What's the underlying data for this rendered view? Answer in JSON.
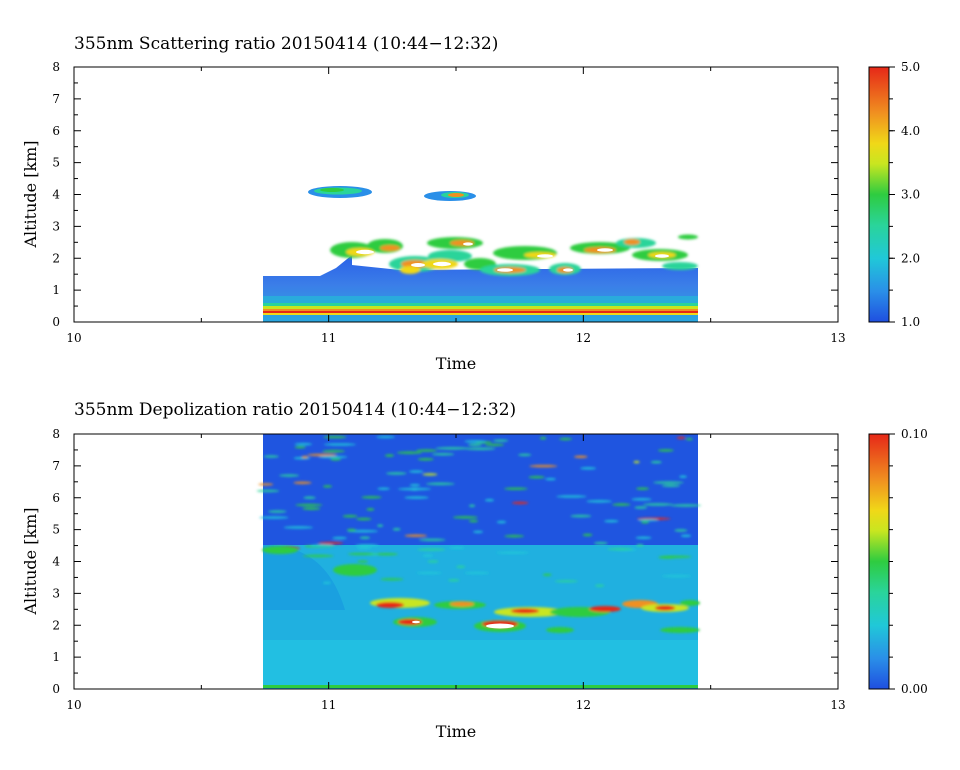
{
  "chart_data": [
    {
      "type": "heatmap",
      "title": "355nm Scattering ratio  20150414 (10:44−12:32)",
      "xlabel": "Time",
      "ylabel": "Altitude [km]",
      "xlim": [
        10,
        13
      ],
      "ylim": [
        0,
        8
      ],
      "x_ticks": [
        "10",
        "11",
        "12",
        "13"
      ],
      "y_ticks": [
        "0",
        "1",
        "2",
        "3",
        "4",
        "5",
        "6",
        "7",
        "8"
      ],
      "colorbar": {
        "min": 1.0,
        "max": 5.0,
        "ticks": [
          "1.0",
          "2.0",
          "3.0",
          "4.0",
          "5.0"
        ]
      },
      "data_extent_time": [
        10.73,
        12.45
      ],
      "features": [
        {
          "name": "aerosol layer",
          "t0": 10.73,
          "t1": 12.45,
          "z0": 0.25,
          "z1": 1.4,
          "value": 1.4
        },
        {
          "name": "surface band",
          "t0": 10.73,
          "t1": 12.45,
          "z0": 0.3,
          "z1": 0.35,
          "value": 4.6
        },
        {
          "name": "low clouds",
          "t0": 11.0,
          "t1": 12.45,
          "z0": 1.5,
          "z1": 2.7,
          "value": 4.5
        },
        {
          "name": "cloud 4km",
          "t0": 10.93,
          "t1": 11.15,
          "z0": 3.95,
          "z1": 4.15,
          "value": 3.2
        },
        {
          "name": "cloud 4km",
          "t0": 11.37,
          "t1": 11.57,
          "z0": 3.85,
          "z1": 4.05,
          "value": 3.8
        }
      ]
    },
    {
      "type": "heatmap",
      "title": "355nm Depolization ratio  20150414 (10:44−12:32)",
      "xlabel": "Time",
      "ylabel": "Altitude [km]",
      "xlim": [
        10,
        13
      ],
      "ylim": [
        0,
        8
      ],
      "x_ticks": [
        "10",
        "11",
        "12",
        "13"
      ],
      "y_ticks": [
        "0",
        "1",
        "2",
        "3",
        "4",
        "5",
        "6",
        "7",
        "8"
      ],
      "colorbar": {
        "min": 0.0,
        "max": 0.1,
        "ticks": [
          "0.00",
          "0.10"
        ]
      },
      "data_extent_time": [
        10.73,
        12.45
      ],
      "features": [
        {
          "name": "lower layer",
          "t0": 10.73,
          "t1": 12.45,
          "z0": 0,
          "z1": 2.3,
          "value": 0.025
        },
        {
          "name": "upper noise",
          "t0": 10.73,
          "t1": 12.45,
          "z0": 2.3,
          "z1": 8,
          "value": 0.01
        },
        {
          "name": "cloud tops",
          "t0": 11.15,
          "t1": 12.45,
          "z0": 2.0,
          "z1": 2.9,
          "value": 0.085
        }
      ]
    }
  ]
}
